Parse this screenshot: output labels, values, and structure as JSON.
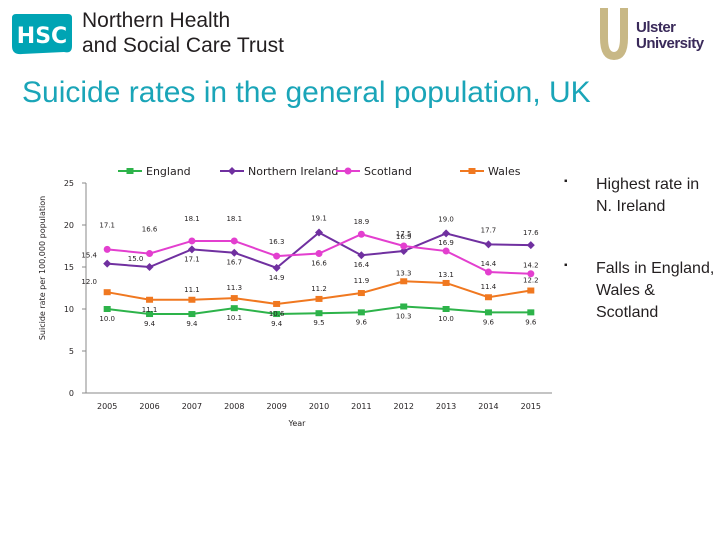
{
  "header": {
    "logo_text": "HSC",
    "org_line1": "Northern Health",
    "org_line2": "and Social Care Trust",
    "uni_line1": "Ulster",
    "uni_line2": "University"
  },
  "slide": {
    "title": "Suicide rates in the general population, UK"
  },
  "bullets": [
    {
      "text": "Highest rate in N. Ireland"
    },
    {
      "text": "Falls in England, Wales & Scotland"
    }
  ],
  "colors": {
    "title": "#1aa5b8",
    "england": "#2db34a",
    "northern_ireland": "#7030a0",
    "scotland": "#e33fcf",
    "wales": "#f07820"
  },
  "chart_data": {
    "type": "line",
    "title": "",
    "xlabel": "Year",
    "ylabel": "Suicide rate per 100,000 population",
    "ylim": [
      0,
      25
    ],
    "yticks": [
      "0",
      "5",
      "10",
      "15",
      "20",
      "25"
    ],
    "categories": [
      "2005",
      "2006",
      "2007",
      "2008",
      "2009",
      "2010",
      "2011",
      "2012",
      "2013",
      "2014",
      "2015"
    ],
    "legend": "top",
    "series": [
      {
        "name": "England",
        "color": "#2db34a",
        "values": [
          10.0,
          9.4,
          9.4,
          10.1,
          9.4,
          9.5,
          9.6,
          10.3,
          10.0,
          9.6,
          9.6
        ],
        "labels": [
          "10.0",
          "9.4",
          "9.4",
          "10.1",
          "9.4",
          "9.5",
          "9.6",
          "10.3",
          "10.0",
          "9.6",
          "9.6"
        ]
      },
      {
        "name": "Northern Ireland",
        "color": "#7030a0",
        "values": [
          15.4,
          15.0,
          17.1,
          16.7,
          14.9,
          19.1,
          16.4,
          16.9,
          19.0,
          17.7,
          17.6
        ],
        "labels": [
          "15.4",
          "15.0",
          "17.1",
          "16.7",
          "14.9",
          "19.1",
          "16.4",
          "16.9",
          "19.0",
          "17.7",
          "17.6"
        ]
      },
      {
        "name": "Scotland",
        "color": "#e33fcf",
        "values": [
          17.1,
          16.6,
          18.1,
          18.1,
          16.3,
          16.6,
          18.9,
          17.5,
          16.9,
          14.4,
          14.2
        ],
        "labels": [
          "17.1",
          "16.6",
          "18.1",
          "18.1",
          "16.3",
          "16.6",
          "18.9",
          "17.5",
          "16.9",
          "14.4",
          "14.2"
        ]
      },
      {
        "name": "Wales",
        "color": "#f07820",
        "values": [
          12.0,
          11.1,
          11.1,
          11.3,
          10.6,
          11.2,
          11.9,
          13.3,
          13.1,
          11.4,
          12.2
        ],
        "labels": [
          "12.0",
          "11.1",
          "11.1",
          "11.3",
          "10.6",
          "11.2",
          "11.9",
          "13.3",
          "13.1",
          "11.4",
          "12.2"
        ]
      }
    ]
  }
}
